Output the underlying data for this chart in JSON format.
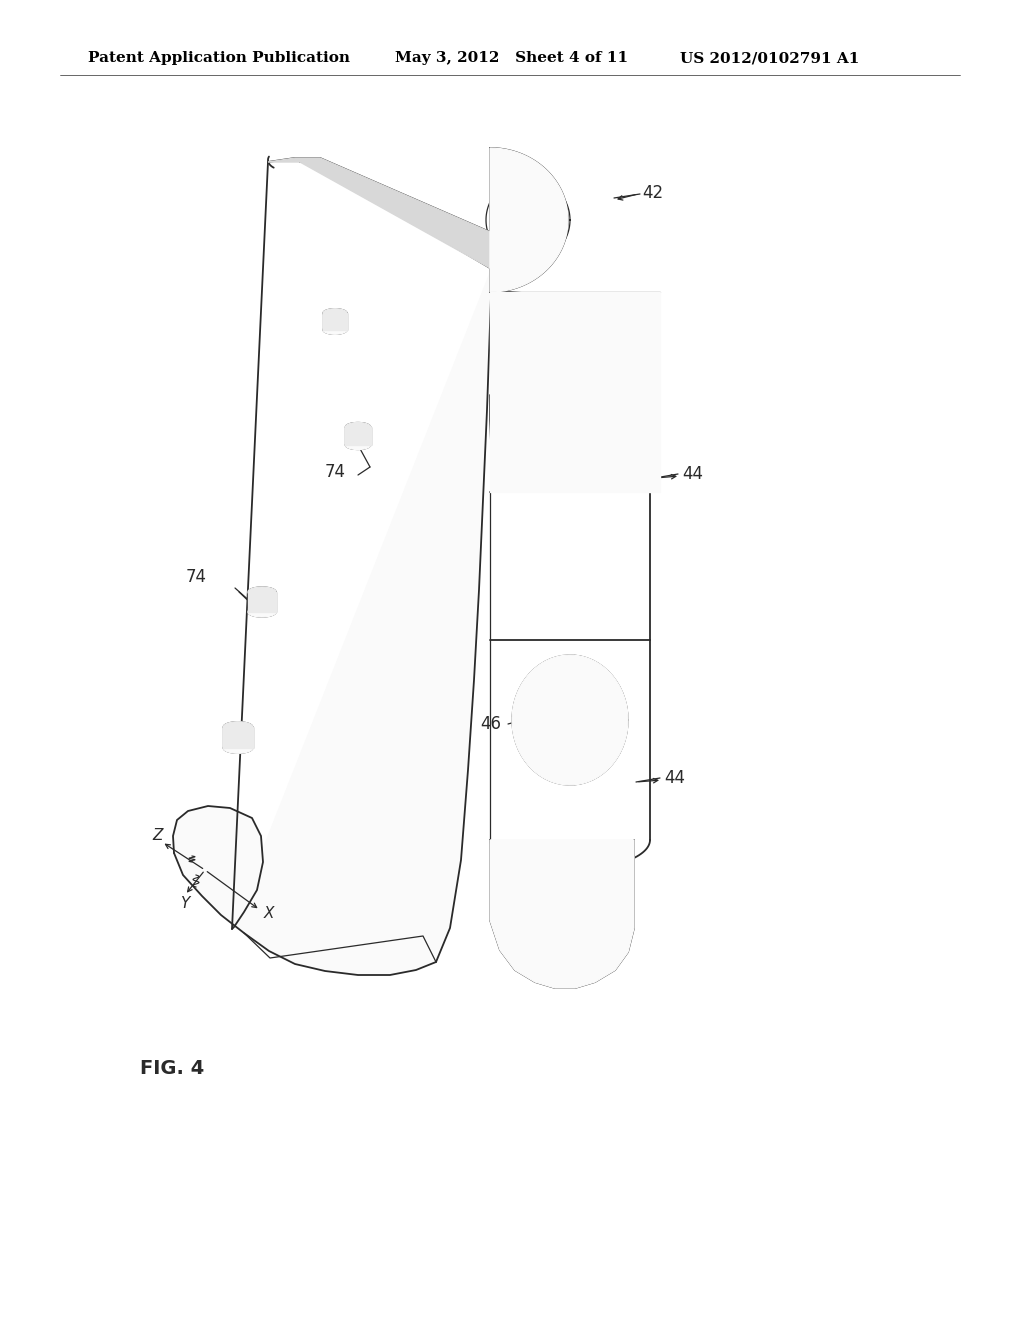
{
  "background_color": "#ffffff",
  "header_left": "Patent Application Publication",
  "header_center": "May 3, 2012   Sheet 4 of 11",
  "header_right": "US 2012/0102791 A1",
  "fig_label": "FIG. 4",
  "line_color": "#2a2a2a",
  "text_color": "#000000",
  "header_fontsize": 11,
  "label_fontsize": 12
}
